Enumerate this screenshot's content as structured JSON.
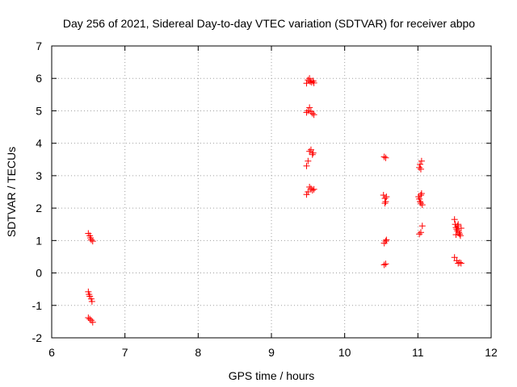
{
  "chart_data": {
    "type": "scatter",
    "title": "Day 256 of 2021, Sidereal Day-to-day VTEC variation (SDTVAR) for receiver abpo",
    "xlabel": "GPS time / hours",
    "ylabel": "SDTVAR / TECUs",
    "xlim": [
      6,
      12
    ],
    "ylim": [
      -2,
      7
    ],
    "xticks": [
      "6",
      "7",
      "8",
      "9",
      "10",
      "11",
      "12"
    ],
    "yticks": [
      "-2",
      "-1",
      "0",
      "1",
      "2",
      "3",
      "4",
      "5",
      "6",
      "7"
    ],
    "grid": true,
    "marker": "plus",
    "marker_color": "#ff0000",
    "series": [
      {
        "points": [
          [
            6.5,
            1.22
          ],
          [
            6.52,
            1.15
          ],
          [
            6.53,
            1.08
          ],
          [
            6.54,
            1.02
          ],
          [
            6.56,
            0.98
          ],
          [
            6.5,
            -0.58
          ],
          [
            6.51,
            -0.66
          ],
          [
            6.52,
            -0.72
          ],
          [
            6.54,
            -0.8
          ],
          [
            6.55,
            -0.88
          ],
          [
            6.5,
            -1.38
          ],
          [
            6.52,
            -1.42
          ],
          [
            6.54,
            -1.46
          ],
          [
            6.56,
            -1.52
          ],
          [
            9.48,
            5.85
          ],
          [
            9.5,
            5.95
          ],
          [
            9.52,
            6.0
          ],
          [
            9.53,
            5.9
          ],
          [
            9.55,
            5.88
          ],
          [
            9.57,
            5.92
          ],
          [
            9.58,
            5.86
          ],
          [
            9.48,
            4.95
          ],
          [
            9.5,
            5.0
          ],
          [
            9.52,
            5.1
          ],
          [
            9.54,
            4.98
          ],
          [
            9.56,
            4.92
          ],
          [
            9.58,
            4.88
          ],
          [
            9.48,
            3.3
          ],
          [
            9.5,
            3.45
          ],
          [
            9.52,
            3.75
          ],
          [
            9.54,
            3.8
          ],
          [
            9.56,
            3.65
          ],
          [
            9.57,
            3.7
          ],
          [
            9.48,
            2.42
          ],
          [
            9.5,
            2.5
          ],
          [
            9.52,
            2.65
          ],
          [
            9.54,
            2.6
          ],
          [
            9.56,
            2.55
          ],
          [
            9.58,
            2.58
          ],
          [
            10.54,
            3.58
          ],
          [
            10.56,
            3.55
          ],
          [
            10.53,
            2.4
          ],
          [
            10.55,
            2.3
          ],
          [
            10.56,
            2.2
          ],
          [
            10.57,
            2.35
          ],
          [
            10.55,
            2.15
          ],
          [
            10.54,
            0.92
          ],
          [
            10.56,
            0.98
          ],
          [
            10.57,
            1.02
          ],
          [
            10.54,
            0.25
          ],
          [
            10.56,
            0.28
          ],
          [
            11.02,
            3.25
          ],
          [
            11.03,
            3.35
          ],
          [
            11.05,
            3.45
          ],
          [
            11.04,
            3.2
          ],
          [
            11.01,
            2.35
          ],
          [
            11.02,
            2.28
          ],
          [
            11.03,
            2.2
          ],
          [
            11.04,
            2.4
          ],
          [
            11.05,
            2.45
          ],
          [
            11.06,
            2.1
          ],
          [
            11.04,
            2.15
          ],
          [
            11.02,
            1.2
          ],
          [
            11.04,
            1.25
          ],
          [
            11.06,
            1.45
          ],
          [
            11.5,
            1.65
          ],
          [
            11.51,
            1.5
          ],
          [
            11.52,
            1.4
          ],
          [
            11.53,
            1.35
          ],
          [
            11.54,
            1.3
          ],
          [
            11.55,
            1.5
          ],
          [
            11.56,
            1.25
          ],
          [
            11.57,
            1.2
          ],
          [
            11.58,
            1.15
          ],
          [
            11.59,
            1.38
          ],
          [
            11.52,
            1.18
          ],
          [
            11.54,
            1.45
          ],
          [
            11.5,
            0.48
          ],
          [
            11.53,
            0.38
          ],
          [
            11.55,
            0.3
          ],
          [
            11.57,
            0.32
          ],
          [
            11.59,
            0.3
          ]
        ]
      }
    ]
  }
}
